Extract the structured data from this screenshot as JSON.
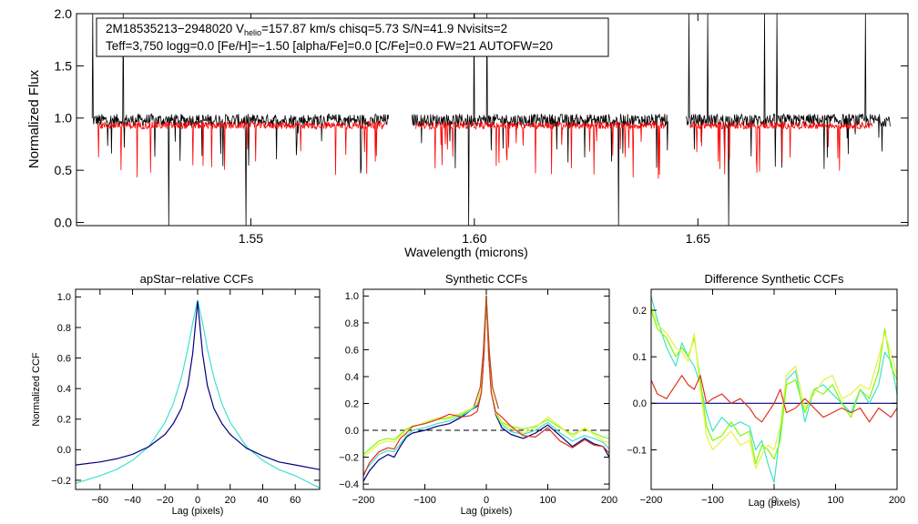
{
  "colors": {
    "observed": "#000000",
    "model": "#ff0000",
    "blue": "#000080",
    "cyan": "#40e0d0",
    "green": "#7cfc00",
    "yellow": "#e8f040",
    "red": "#e03020",
    "brown": "#b05020"
  },
  "chart_data": [
    {
      "id": "spectrum",
      "type": "line",
      "title": "",
      "xlabel": "Wavelength (microns)",
      "ylabel": "Normalized Flux",
      "xlim": [
        1.511,
        1.697
      ],
      "ylim": [
        -0.03,
        2.0
      ],
      "xticks": [
        1.55,
        1.6,
        1.65
      ],
      "xtick_labels": [
        "1.55",
        "1.60",
        "1.65"
      ],
      "yticks": [
        0.0,
        0.5,
        1.0,
        1.5,
        2.0
      ],
      "ytick_labels": [
        "0.0",
        "0.5",
        "1.0",
        "1.5",
        "2.0"
      ],
      "chips": [
        [
          1.5145,
          1.5808
        ],
        [
          1.586,
          1.6433
        ],
        [
          1.6474,
          1.693
        ]
      ],
      "model_chips": [
        [
          1.5158,
          1.58
        ],
        [
          1.5869,
          1.6426
        ],
        [
          1.6482,
          1.689
        ]
      ],
      "series": [
        {
          "name": "observed",
          "color": "#000000",
          "level": 0.98,
          "noise": 0.06
        },
        {
          "name": "model",
          "color": "#ff0000",
          "level": 0.93,
          "noise": 0.035
        }
      ],
      "annotation": {
        "line1_prefix": "2M18535213−2948020  V",
        "line1_sub": "helio",
        "line1_suffix": "=157.87 km/s  chisq=5.73  S/N=41.9  Nvisits=2",
        "line2": "Teff=3,750 logg=0.0 [Fe/H]=−1.50 [alpha/Fe]=0.0 [C/Fe]=0.0 FW=21 AUTOFW=20"
      }
    },
    {
      "id": "apstar_ccf",
      "type": "line",
      "title": "apStar−relative CCFs",
      "xlabel": "Lag (pixels)",
      "ylabel": "Normalized CCF",
      "xlim": [
        -75,
        75
      ],
      "ylim": [
        -0.26,
        1.05
      ],
      "xticks": [
        -60,
        -40,
        -20,
        0,
        20,
        40,
        60
      ],
      "xtick_labels": [
        "−60",
        "−40",
        "−20",
        "0",
        "20",
        "40",
        "60"
      ],
      "yticks": [
        -0.2,
        0.0,
        0.2,
        0.4,
        0.6,
        0.8,
        1.0
      ],
      "ytick_labels": [
        "−0.2",
        "0.0",
        "0.2",
        "0.4",
        "0.6",
        "0.8",
        "1.0"
      ],
      "series": [
        {
          "name": "cyan",
          "color": "#40e0d0",
          "x": [
            -75,
            -60,
            -50,
            -40,
            -30,
            -20,
            -15,
            -10,
            -6,
            -3,
            0,
            3,
            6,
            10,
            15,
            20,
            30,
            40,
            50,
            60,
            75
          ],
          "y": [
            -0.22,
            -0.17,
            -0.13,
            -0.07,
            0.02,
            0.18,
            0.3,
            0.47,
            0.66,
            0.83,
            0.98,
            0.83,
            0.66,
            0.47,
            0.3,
            0.18,
            0.02,
            -0.07,
            -0.13,
            -0.17,
            -0.25
          ]
        },
        {
          "name": "blue",
          "color": "#000080",
          "x": [
            -75,
            -60,
            -50,
            -40,
            -30,
            -20,
            -15,
            -10,
            -6,
            -3,
            0,
            3,
            6,
            10,
            15,
            20,
            30,
            40,
            50,
            60,
            75
          ],
          "y": [
            -0.1,
            -0.08,
            -0.06,
            -0.03,
            0.02,
            0.1,
            0.17,
            0.27,
            0.42,
            0.63,
            0.97,
            0.63,
            0.42,
            0.27,
            0.17,
            0.1,
            0.01,
            -0.04,
            -0.08,
            -0.1,
            -0.13
          ]
        }
      ]
    },
    {
      "id": "synthetic_ccf",
      "type": "line",
      "title": "Synthetic CCFs",
      "xlabel": "Lag (pixels)",
      "ylabel": "",
      "xlim": [
        -200,
        200
      ],
      "ylim": [
        -0.44,
        1.05
      ],
      "xticks": [
        -200,
        -100,
        0,
        100,
        200
      ],
      "xtick_labels": [
        "−200",
        "−100",
        "0",
        "100",
        "200"
      ],
      "yticks": [
        -0.4,
        -0.2,
        0.0,
        0.2,
        0.4,
        0.6,
        0.8,
        1.0
      ],
      "ytick_labels": [
        "−0.4",
        "−0.2",
        "0.0",
        "0.2",
        "0.4",
        "0.6",
        "0.8",
        "1.0"
      ],
      "reference_line": {
        "y": 0.0,
        "style": "dashed"
      },
      "series": [
        {
          "name": "blue",
          "color": "#000080",
          "x": [
            -200,
            -190,
            -175,
            -160,
            -150,
            -140,
            -130,
            -120,
            -100,
            -80,
            -60,
            -40,
            -25,
            -15,
            -8,
            -4,
            0,
            4,
            8,
            15,
            25,
            40,
            60,
            80,
            100,
            120,
            140,
            160,
            175,
            190,
            200
          ],
          "y": [
            -0.38,
            -0.3,
            -0.22,
            -0.18,
            -0.2,
            -0.12,
            -0.05,
            -0.02,
            0.0,
            0.03,
            0.05,
            0.1,
            0.15,
            0.18,
            0.3,
            0.55,
            1.0,
            0.55,
            0.3,
            0.12,
            0.02,
            -0.03,
            -0.06,
            -0.02,
            0.04,
            -0.04,
            -0.12,
            -0.06,
            -0.1,
            -0.12,
            -0.2
          ]
        },
        {
          "name": "cyan",
          "color": "#40e0d0",
          "x": [
            -200,
            -190,
            -175,
            -160,
            -150,
            -140,
            -130,
            -120,
            -100,
            -80,
            -60,
            -40,
            -25,
            -15,
            -8,
            -4,
            0,
            4,
            8,
            15,
            25,
            40,
            60,
            80,
            100,
            120,
            140,
            160,
            175,
            190,
            200
          ],
          "y": [
            -0.32,
            -0.26,
            -0.18,
            -0.15,
            -0.16,
            -0.1,
            -0.04,
            0.0,
            0.02,
            0.05,
            0.07,
            0.11,
            0.15,
            0.19,
            0.3,
            0.55,
            1.0,
            0.55,
            0.3,
            0.13,
            0.04,
            -0.01,
            -0.03,
            0.0,
            0.06,
            -0.02,
            -0.08,
            -0.04,
            -0.06,
            -0.09,
            -0.14
          ]
        },
        {
          "name": "green",
          "color": "#7cfc00",
          "x": [
            -200,
            -190,
            -175,
            -160,
            -150,
            -140,
            -130,
            -120,
            -100,
            -80,
            -60,
            -40,
            -25,
            -15,
            -8,
            -4,
            0,
            4,
            8,
            15,
            25,
            40,
            60,
            80,
            100,
            120,
            140,
            160,
            175,
            190,
            200
          ],
          "y": [
            -0.18,
            -0.14,
            -0.08,
            -0.06,
            -0.07,
            -0.03,
            0.01,
            0.03,
            0.05,
            0.08,
            0.09,
            0.12,
            0.16,
            0.2,
            0.31,
            0.56,
            1.0,
            0.56,
            0.31,
            0.14,
            0.06,
            0.03,
            0.01,
            0.03,
            0.08,
            0.02,
            -0.03,
            0.01,
            -0.02,
            -0.05,
            -0.06
          ]
        },
        {
          "name": "yellow",
          "color": "#e8f040",
          "x": [
            -200,
            -190,
            -175,
            -160,
            -150,
            -140,
            -130,
            -120,
            -100,
            -80,
            -60,
            -40,
            -25,
            -15,
            -8,
            -4,
            0,
            4,
            8,
            15,
            25,
            40,
            60,
            80,
            100,
            120,
            140,
            160,
            175,
            190,
            200
          ],
          "y": [
            -0.2,
            -0.16,
            -0.1,
            -0.08,
            -0.09,
            -0.04,
            0.0,
            0.02,
            0.06,
            0.09,
            0.1,
            0.13,
            0.16,
            0.2,
            0.31,
            0.56,
            1.0,
            0.56,
            0.31,
            0.13,
            0.05,
            0.01,
            -0.02,
            0.02,
            0.1,
            0.03,
            -0.05,
            0.02,
            -0.03,
            -0.08,
            -0.09
          ]
        },
        {
          "name": "red",
          "color": "#e03020",
          "x": [
            -200,
            -190,
            -175,
            -160,
            -150,
            -140,
            -130,
            -120,
            -100,
            -80,
            -60,
            -40,
            -25,
            -15,
            -8,
            -4,
            0,
            4,
            8,
            15,
            25,
            40,
            60,
            80,
            100,
            120,
            140,
            160,
            175,
            190,
            200
          ],
          "y": [
            -0.34,
            -0.24,
            -0.16,
            -0.13,
            -0.14,
            -0.06,
            -0.02,
            0.03,
            0.05,
            0.08,
            0.12,
            0.1,
            0.11,
            0.14,
            0.28,
            0.55,
            1.0,
            0.55,
            0.28,
            0.14,
            0.1,
            0.03,
            -0.04,
            -0.05,
            0.02,
            -0.08,
            -0.13,
            -0.07,
            -0.11,
            -0.12,
            -0.17
          ]
        },
        {
          "name": "brown",
          "color": "#b05020",
          "x": [
            -20,
            -10,
            -5,
            0,
            5,
            10,
            20
          ],
          "y": [
            0.18,
            0.32,
            0.58,
            1.0,
            0.58,
            0.32,
            0.16
          ]
        }
      ]
    },
    {
      "id": "difference_ccf",
      "type": "line",
      "title": "Difference Synthetic CCFs",
      "xlabel": "Lag (pixels)",
      "ylabel": "",
      "xlim": [
        -200,
        200
      ],
      "ylim": [
        -0.185,
        0.245
      ],
      "xticks": [
        -200,
        -100,
        0,
        100,
        200
      ],
      "xtick_labels": [
        "−200",
        "−100",
        "0",
        "100",
        "200"
      ],
      "yticks": [
        -0.1,
        0.0,
        0.1,
        0.2
      ],
      "ytick_labels": [
        "−0.1",
        "0.0",
        "0.1",
        "0.2"
      ],
      "series": [
        {
          "name": "blue",
          "color": "#000080",
          "x": [
            -200,
            200
          ],
          "y": [
            0.0,
            0.0
          ]
        },
        {
          "name": "cyan",
          "color": "#40e0d0",
          "x": [
            -200,
            -190,
            -175,
            -160,
            -150,
            -140,
            -130,
            -120,
            -110,
            -100,
            -85,
            -70,
            -55,
            -40,
            -30,
            -20,
            -10,
            0,
            10,
            20,
            35,
            50,
            65,
            80,
            95,
            110,
            125,
            140,
            155,
            170,
            180,
            190,
            200
          ],
          "y": [
            0.23,
            0.18,
            0.12,
            0.08,
            0.13,
            0.1,
            0.08,
            0.04,
            -0.02,
            -0.06,
            -0.03,
            -0.05,
            -0.04,
            -0.05,
            -0.1,
            -0.08,
            -0.13,
            -0.17,
            -0.06,
            0.05,
            0.07,
            -0.04,
            0.03,
            0.04,
            0.02,
            0.0,
            -0.02,
            0.03,
            0.0,
            0.04,
            0.11,
            0.09,
            0.02
          ]
        },
        {
          "name": "green",
          "color": "#7cfc00",
          "x": [
            -200,
            -190,
            -175,
            -160,
            -150,
            -140,
            -130,
            -120,
            -110,
            -100,
            -85,
            -70,
            -55,
            -40,
            -30,
            -20,
            -10,
            0,
            10,
            20,
            35,
            50,
            65,
            80,
            95,
            110,
            125,
            140,
            155,
            170,
            180,
            190,
            200
          ],
          "y": [
            0.2,
            0.16,
            0.14,
            0.1,
            0.12,
            0.1,
            0.14,
            0.05,
            -0.05,
            -0.08,
            -0.07,
            -0.04,
            -0.07,
            -0.06,
            -0.13,
            -0.09,
            -0.1,
            -0.12,
            -0.08,
            0.04,
            0.05,
            -0.02,
            0.03,
            0.02,
            0.04,
            0.0,
            -0.03,
            0.03,
            0.01,
            0.07,
            0.16,
            0.08,
            0.05
          ]
        },
        {
          "name": "yellow",
          "color": "#e8f040",
          "x": [
            -200,
            -190,
            -175,
            -160,
            -150,
            -140,
            -130,
            -120,
            -110,
            -100,
            -85,
            -70,
            -55,
            -40,
            -30,
            -20,
            -10,
            0,
            10,
            20,
            35,
            50,
            65,
            80,
            95,
            110,
            125,
            140,
            155,
            170,
            180,
            190,
            200
          ],
          "y": [
            0.21,
            0.17,
            0.15,
            0.12,
            0.11,
            0.09,
            0.15,
            0.03,
            -0.07,
            -0.1,
            -0.08,
            -0.06,
            -0.09,
            -0.08,
            -0.14,
            -0.11,
            -0.09,
            -0.1,
            -0.05,
            0.06,
            0.08,
            -0.01,
            0.02,
            0.05,
            0.06,
            0.01,
            0.02,
            0.04,
            0.03,
            0.1,
            0.15,
            0.11,
            0.06
          ]
        },
        {
          "name": "red",
          "color": "#e03020",
          "x": [
            -200,
            -190,
            -175,
            -160,
            -150,
            -140,
            -130,
            -120,
            -110,
            -100,
            -85,
            -70,
            -55,
            -40,
            -30,
            -20,
            -10,
            0,
            10,
            20,
            35,
            50,
            65,
            80,
            95,
            110,
            125,
            140,
            155,
            170,
            180,
            190,
            200
          ],
          "y": [
            0.05,
            0.02,
            0.01,
            0.04,
            0.06,
            0.04,
            0.03,
            0.06,
            0.0,
            0.01,
            0.02,
            0.0,
            0.01,
            -0.01,
            -0.03,
            -0.04,
            -0.02,
            0.0,
            0.03,
            -0.02,
            -0.01,
            0.01,
            -0.01,
            -0.03,
            -0.02,
            -0.01,
            -0.02,
            -0.01,
            -0.04,
            -0.01,
            -0.02,
            -0.03,
            -0.01
          ]
        }
      ]
    }
  ]
}
